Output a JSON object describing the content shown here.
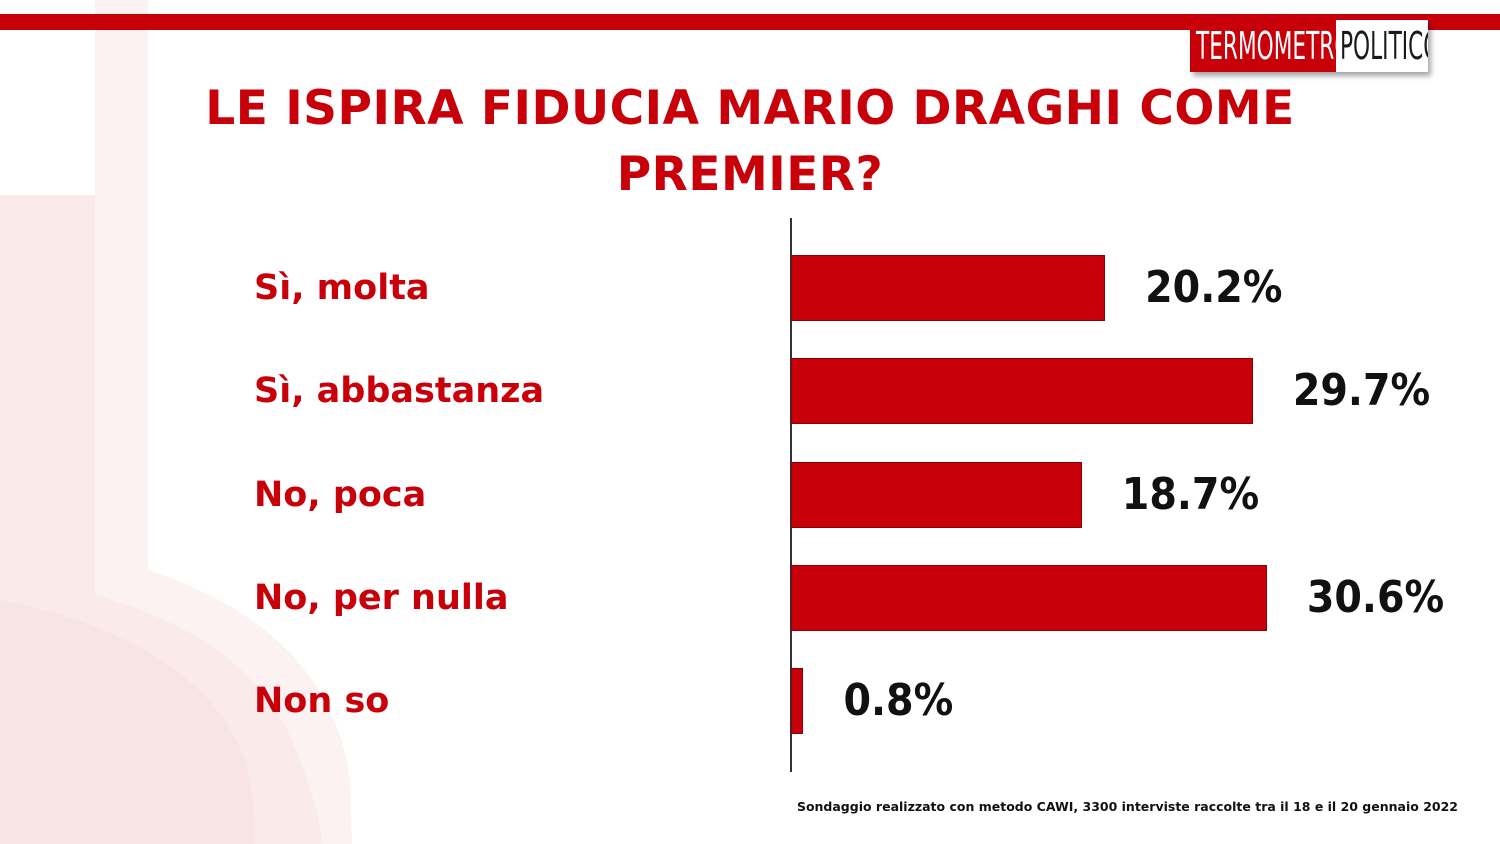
{
  "logo": {
    "left_text": "TERMOMETRO",
    "right_text": "POLITICO"
  },
  "colors": {
    "accent": "#c8000a",
    "bar_border": "#8a0006",
    "value_text": "#111111"
  },
  "chart_data": {
    "type": "bar",
    "orientation": "horizontal",
    "title": "LE ISPIRA FIDUCIA MARIO DRAGHI COME PREMIER?",
    "categories": [
      "Sì, molta",
      "Sì, abbastanza",
      "No, poca",
      "No, per nulla",
      "Non so"
    ],
    "values": [
      20.2,
      29.7,
      18.7,
      30.6,
      0.8
    ],
    "value_labels": [
      "20.2%",
      "29.7%",
      "18.7%",
      "30.6%",
      "0.8%"
    ],
    "unit": "%",
    "xlim": [
      0,
      35
    ],
    "grid": false,
    "legend": "none"
  },
  "footnote": "Sondaggio realizzato con metodo CAWI, 3300 interviste raccolte tra il 18 e il 20 gennaio 2022"
}
